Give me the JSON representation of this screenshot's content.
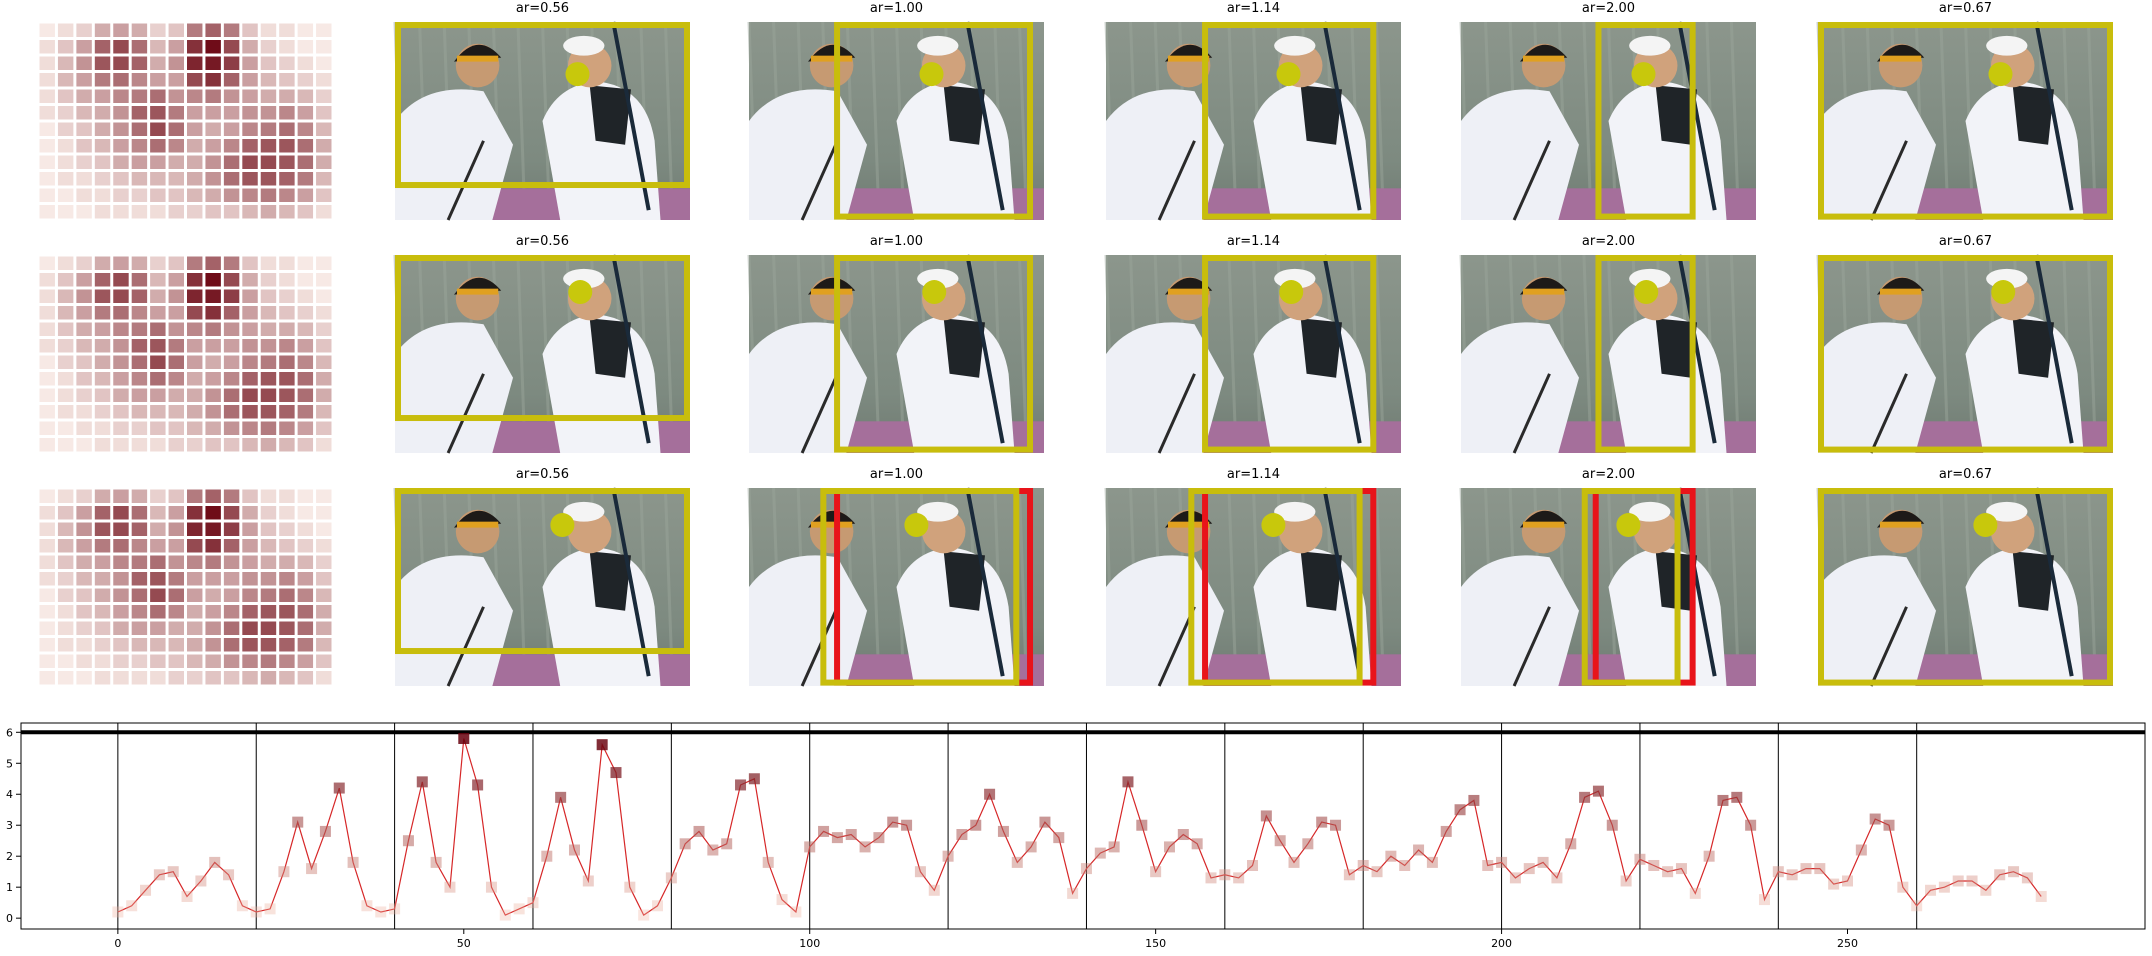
{
  "grid": {
    "rows": [
      {
        "titles": [
          "ar=0.56",
          "ar=1.00",
          "ar=1.14",
          "ar=2.00",
          "ar=0.67"
        ]
      },
      {
        "titles": [
          "ar=0.56",
          "ar=1.00",
          "ar=1.14",
          "ar=2.00",
          "ar=0.67"
        ]
      },
      {
        "titles": [
          "ar=0.56",
          "ar=1.00",
          "ar=1.14",
          "ar=2.00",
          "ar=0.67"
        ]
      }
    ]
  },
  "chart_data": [
    {
      "type": "heatmap",
      "color": "#67000d",
      "clim": [
        0,
        1
      ],
      "values": [
        [
          0.05,
          0.1,
          0.15,
          0.3,
          0.35,
          0.3,
          0.15,
          0.2,
          0.5,
          0.6,
          0.5,
          0.2,
          0.1,
          0.1,
          0.05,
          0.05
        ],
        [
          0.1,
          0.2,
          0.35,
          0.6,
          0.7,
          0.55,
          0.25,
          0.35,
          0.8,
          0.95,
          0.7,
          0.3,
          0.15,
          0.1,
          0.05,
          0.05
        ],
        [
          0.1,
          0.25,
          0.4,
          0.65,
          0.7,
          0.6,
          0.3,
          0.4,
          0.85,
          0.9,
          0.75,
          0.35,
          0.2,
          0.15,
          0.1,
          0.05
        ],
        [
          0.1,
          0.25,
          0.35,
          0.5,
          0.55,
          0.45,
          0.35,
          0.35,
          0.7,
          0.8,
          0.6,
          0.35,
          0.25,
          0.2,
          0.15,
          0.1
        ],
        [
          0.1,
          0.2,
          0.3,
          0.35,
          0.45,
          0.5,
          0.55,
          0.4,
          0.45,
          0.5,
          0.4,
          0.35,
          0.3,
          0.3,
          0.25,
          0.15
        ],
        [
          0.1,
          0.15,
          0.25,
          0.3,
          0.4,
          0.6,
          0.65,
          0.5,
          0.35,
          0.35,
          0.35,
          0.4,
          0.4,
          0.45,
          0.35,
          0.2
        ],
        [
          0.05,
          0.15,
          0.2,
          0.3,
          0.4,
          0.55,
          0.7,
          0.55,
          0.35,
          0.3,
          0.35,
          0.45,
          0.5,
          0.55,
          0.45,
          0.25
        ],
        [
          0.05,
          0.1,
          0.2,
          0.25,
          0.35,
          0.45,
          0.55,
          0.45,
          0.3,
          0.35,
          0.45,
          0.6,
          0.65,
          0.65,
          0.55,
          0.3
        ],
        [
          0.05,
          0.1,
          0.15,
          0.2,
          0.3,
          0.35,
          0.35,
          0.3,
          0.3,
          0.4,
          0.55,
          0.7,
          0.7,
          0.65,
          0.55,
          0.3
        ],
        [
          0.05,
          0.1,
          0.1,
          0.15,
          0.2,
          0.25,
          0.25,
          0.25,
          0.3,
          0.4,
          0.55,
          0.65,
          0.65,
          0.6,
          0.5,
          0.25
        ],
        [
          0.05,
          0.05,
          0.1,
          0.1,
          0.15,
          0.15,
          0.2,
          0.2,
          0.25,
          0.3,
          0.4,
          0.45,
          0.5,
          0.45,
          0.35,
          0.2
        ],
        [
          0.05,
          0.05,
          0.05,
          0.1,
          0.1,
          0.1,
          0.1,
          0.15,
          0.15,
          0.2,
          0.2,
          0.25,
          0.3,
          0.25,
          0.2,
          0.1
        ]
      ]
    },
    {
      "type": "line",
      "color": "#d62728",
      "marker_colors": [
        "#fcc5b0",
        "#67000d"
      ],
      "xlim": [
        -14,
        293
      ],
      "ylim": [
        -0.35,
        6.3
      ],
      "xticks": [
        0,
        50,
        100,
        150,
        200,
        250
      ],
      "yticks": [
        0,
        1,
        2,
        3,
        4,
        5,
        6
      ],
      "hline": 6,
      "vlines": [
        0,
        20,
        40,
        60,
        80,
        100,
        120,
        140,
        160,
        180,
        200,
        220,
        240,
        260
      ],
      "x": [
        0,
        2,
        4,
        6,
        8,
        10,
        12,
        14,
        16,
        18,
        20,
        22,
        24,
        26,
        28,
        30,
        32,
        34,
        36,
        38,
        40,
        42,
        44,
        46,
        48,
        50,
        52,
        54,
        56,
        58,
        60,
        62,
        64,
        66,
        68,
        70,
        72,
        74,
        76,
        78,
        80,
        82,
        84,
        86,
        88,
        90,
        92,
        94,
        96,
        98,
        100,
        102,
        104,
        106,
        108,
        110,
        112,
        114,
        116,
        118,
        120,
        122,
        124,
        126,
        128,
        130,
        132,
        134,
        136,
        138,
        140,
        142,
        144,
        146,
        148,
        150,
        152,
        154,
        156,
        158,
        160,
        162,
        164,
        166,
        168,
        170,
        172,
        174,
        176,
        178,
        180,
        182,
        184,
        186,
        188,
        190,
        192,
        194,
        196,
        198,
        200,
        202,
        204,
        206,
        208,
        210,
        212,
        214,
        216,
        218,
        220,
        222,
        224,
        226,
        228,
        230,
        232,
        234,
        236,
        238,
        240,
        242,
        244,
        246,
        248,
        250,
        252,
        254,
        256,
        258,
        260,
        262,
        264,
        266,
        268,
        270,
        272,
        274,
        276,
        278
      ],
      "values": [
        0.2,
        0.4,
        0.9,
        1.4,
        1.5,
        0.7,
        1.2,
        1.8,
        1.4,
        0.4,
        0.2,
        0.3,
        1.5,
        3.1,
        1.6,
        2.8,
        4.2,
        1.8,
        0.4,
        0.2,
        0.3,
        2.5,
        4.4,
        1.8,
        1.0,
        5.8,
        4.3,
        1.0,
        0.1,
        0.3,
        0.5,
        2.0,
        3.9,
        2.2,
        1.2,
        5.6,
        4.7,
        1.0,
        0.1,
        0.4,
        1.3,
        2.4,
        2.8,
        2.2,
        2.4,
        4.3,
        4.5,
        1.8,
        0.6,
        0.2,
        2.3,
        2.8,
        2.6,
        2.7,
        2.3,
        2.6,
        3.1,
        3.0,
        1.5,
        0.9,
        2.0,
        2.7,
        3.0,
        4.0,
        2.8,
        1.8,
        2.3,
        3.1,
        2.6,
        0.8,
        1.6,
        2.1,
        2.3,
        4.4,
        3.0,
        1.5,
        2.3,
        2.7,
        2.4,
        1.3,
        1.4,
        1.3,
        1.7,
        3.3,
        2.5,
        1.8,
        2.4,
        3.1,
        3.0,
        1.4,
        1.7,
        1.5,
        2.0,
        1.7,
        2.2,
        1.8,
        2.8,
        3.5,
        3.8,
        1.7,
        1.8,
        1.3,
        1.6,
        1.8,
        1.3,
        2.4,
        3.9,
        4.1,
        3.0,
        1.2,
        1.9,
        1.7,
        1.5,
        1.6,
        0.8,
        2.0,
        3.8,
        3.9,
        3.0,
        0.6,
        1.5,
        1.4,
        1.6,
        1.6,
        1.1,
        1.2,
        2.2,
        3.2,
        3.0,
        1.0,
        0.4,
        0.9,
        1.0,
        1.2,
        1.2,
        0.9,
        1.4,
        1.5,
        1.3,
        0.7
      ]
    }
  ]
}
